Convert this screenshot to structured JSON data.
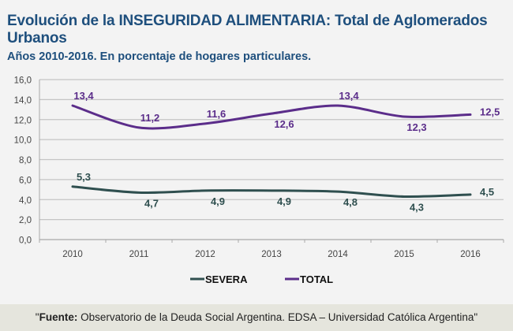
{
  "header": {
    "title": "Evolución de la INSEGURIDAD ALIMENTARIA: Total de Aglomerados Urbanos",
    "subtitle": "Años 2010-2016. En porcentaje de hogares particulares."
  },
  "footer": {
    "open_quote": "\"",
    "label": "Fuente:",
    "text": " Observatorio de la Deuda Social Argentina. EDSA – Universidad Católica Argentina\""
  },
  "chart_data": {
    "type": "line",
    "title": "Evolución de la INSEGURIDAD ALIMENTARIA: Total de Aglomerados Urbanos",
    "subtitle": "Años 2010-2016. En porcentaje de hogares particulares.",
    "xlabel": "",
    "ylabel": "",
    "categories": [
      "2010",
      "2011",
      "2012",
      "2013",
      "2014",
      "2015",
      "2016"
    ],
    "ylim": [
      0,
      16
    ],
    "yticks": [
      0,
      2,
      4,
      6,
      8,
      10,
      12,
      14,
      16
    ],
    "ytick_labels": [
      "0,0",
      "2,0",
      "4,0",
      "6,0",
      "8,0",
      "10,0",
      "12,0",
      "14,0",
      "16,0"
    ],
    "grid": true,
    "legend": "bottom-center",
    "series": [
      {
        "name": "SEVERA",
        "color": "#2f4f4f",
        "values": [
          5.3,
          4.7,
          4.9,
          4.9,
          4.8,
          4.3,
          4.5
        ],
        "labels": [
          "5,3",
          "4,7",
          "4,9",
          "4,9",
          "4,8",
          "4,3",
          "4,5"
        ],
        "label_pos": [
          "above",
          "below",
          "below",
          "below",
          "below",
          "below",
          "right"
        ]
      },
      {
        "name": "TOTAL",
        "color": "#5b2d8a",
        "values": [
          13.4,
          11.2,
          11.6,
          12.6,
          13.4,
          12.3,
          12.5
        ],
        "labels": [
          "13,4",
          "11,2",
          "11,6",
          "12,6",
          "13,4",
          "12,3",
          "12,5"
        ],
        "label_pos": [
          "above",
          "above",
          "above",
          "below",
          "above",
          "below",
          "right"
        ]
      }
    ]
  }
}
